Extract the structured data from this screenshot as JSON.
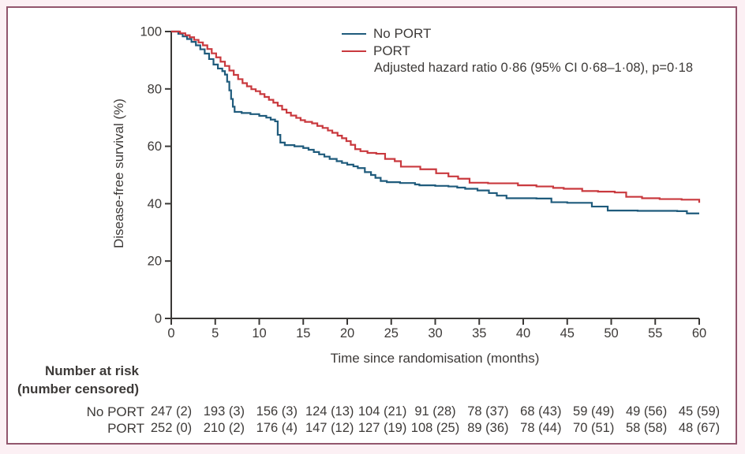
{
  "colors": {
    "no_port": "#1f5b7c",
    "port": "#c9393e",
    "axis": "#3a3836",
    "text": "#3d3a38",
    "frame_border": "#92566d",
    "page_background": "#fcf0f4"
  },
  "chart_data": {
    "type": "line",
    "subtype": "kaplan-meier-step",
    "title": "",
    "xlabel": "Time since randomisation (months)",
    "ylabel": "Disease-free survival (%)",
    "xlim": [
      0,
      60
    ],
    "ylim": [
      0,
      100
    ],
    "xticks": [
      0,
      5,
      10,
      15,
      20,
      25,
      30,
      35,
      40,
      45,
      50,
      55,
      60
    ],
    "yticks": [
      0,
      20,
      40,
      60,
      80,
      100
    ],
    "grid": false,
    "legend_position": "top-right-inside",
    "legend": [
      {
        "name": "No PORT",
        "color": "#1f5b7c"
      },
      {
        "name": "PORT",
        "color": "#c9393e"
      }
    ],
    "annotation": "Adjusted hazard ratio 0·86 (95% CI 0·68–1·08), p=0·18",
    "series": [
      {
        "name": "No PORT",
        "color": "#1f5b7c",
        "points": [
          [
            0,
            100
          ],
          [
            0.8,
            99.2
          ],
          [
            1.3,
            98.3
          ],
          [
            1.8,
            97.4
          ],
          [
            2.3,
            96.4
          ],
          [
            2.8,
            95.2
          ],
          [
            3.3,
            93.8
          ],
          [
            3.8,
            92.3
          ],
          [
            4.3,
            90.4
          ],
          [
            4.8,
            88.5
          ],
          [
            5.3,
            87.1
          ],
          [
            5.8,
            86.2
          ],
          [
            6.1,
            85
          ],
          [
            6.35,
            82.5
          ],
          [
            6.6,
            79.5
          ],
          [
            6.8,
            76.5
          ],
          [
            7,
            73.8
          ],
          [
            7.2,
            72
          ],
          [
            8,
            71.6
          ],
          [
            9,
            71.2
          ],
          [
            10,
            70.6
          ],
          [
            10.8,
            70
          ],
          [
            11.3,
            69.3
          ],
          [
            11.8,
            68.7
          ],
          [
            12.1,
            64
          ],
          [
            12.4,
            61.3
          ],
          [
            12.9,
            60.4
          ],
          [
            14,
            60
          ],
          [
            15,
            59.4
          ],
          [
            15.6,
            58.8
          ],
          [
            16.2,
            58
          ],
          [
            16.8,
            57.2
          ],
          [
            17.4,
            56.4
          ],
          [
            18,
            55.6
          ],
          [
            18.8,
            54.8
          ],
          [
            19.4,
            54.2
          ],
          [
            20,
            53.6
          ],
          [
            20.7,
            53
          ],
          [
            21.2,
            52.4
          ],
          [
            22,
            51
          ],
          [
            22.7,
            50
          ],
          [
            23.2,
            49
          ],
          [
            23.8,
            47.9
          ],
          [
            24.5,
            47.5
          ],
          [
            26,
            47.2
          ],
          [
            27.7,
            46.7
          ],
          [
            28.2,
            46.4
          ],
          [
            30,
            46.2
          ],
          [
            31.5,
            46
          ],
          [
            32.5,
            45.6
          ],
          [
            33.4,
            45.2
          ],
          [
            34.8,
            44.6
          ],
          [
            36.1,
            43.7
          ],
          [
            37,
            42.8
          ],
          [
            38.1,
            41.9
          ],
          [
            41.5,
            41.8
          ],
          [
            43.2,
            40.5
          ],
          [
            45,
            40.3
          ],
          [
            47.8,
            39
          ],
          [
            49.6,
            37.6
          ],
          [
            53,
            37.5
          ],
          [
            57.5,
            37.4
          ],
          [
            58.6,
            36.6
          ],
          [
            60,
            36.6
          ]
        ]
      },
      {
        "name": "PORT",
        "color": "#c9393e",
        "points": [
          [
            0,
            100
          ],
          [
            1,
            99.4
          ],
          [
            1.6,
            98.7
          ],
          [
            2.1,
            98
          ],
          [
            2.6,
            97.1
          ],
          [
            3.1,
            96.2
          ],
          [
            3.6,
            95.2
          ],
          [
            4.1,
            93.9
          ],
          [
            4.6,
            92.4
          ],
          [
            5.1,
            91
          ],
          [
            5.6,
            89.5
          ],
          [
            6.1,
            88
          ],
          [
            6.6,
            86.4
          ],
          [
            7.1,
            84.9
          ],
          [
            7.6,
            83.4
          ],
          [
            8.1,
            82
          ],
          [
            8.6,
            80.9
          ],
          [
            9.1,
            79.9
          ],
          [
            9.6,
            79.2
          ],
          [
            10.1,
            78.2
          ],
          [
            10.6,
            77.2
          ],
          [
            11.1,
            76.2
          ],
          [
            11.6,
            75.2
          ],
          [
            12.1,
            74.1
          ],
          [
            12.6,
            72.8
          ],
          [
            13.1,
            71.7
          ],
          [
            13.6,
            70.7
          ],
          [
            14.2,
            69.9
          ],
          [
            14.7,
            69.1
          ],
          [
            15.2,
            68.5
          ],
          [
            16,
            68
          ],
          [
            16.6,
            67.1
          ],
          [
            17.2,
            66.4
          ],
          [
            17.8,
            65.5
          ],
          [
            18.3,
            64.7
          ],
          [
            18.9,
            63.7
          ],
          [
            19.4,
            62.8
          ],
          [
            19.9,
            61.8
          ],
          [
            20.4,
            60.5
          ],
          [
            20.9,
            59
          ],
          [
            21.5,
            58.3
          ],
          [
            22.3,
            57.7
          ],
          [
            23.3,
            57.4
          ],
          [
            24.3,
            55.6
          ],
          [
            25.4,
            54.8
          ],
          [
            26.1,
            52.9
          ],
          [
            28.3,
            52
          ],
          [
            30.1,
            50.6
          ],
          [
            31.5,
            49.5
          ],
          [
            32.6,
            48.7
          ],
          [
            33.9,
            47.3
          ],
          [
            36,
            47.1
          ],
          [
            39.4,
            46.4
          ],
          [
            41.5,
            46
          ],
          [
            43.4,
            45.5
          ],
          [
            44.6,
            45.2
          ],
          [
            46.7,
            44.4
          ],
          [
            48.5,
            44.2
          ],
          [
            50.4,
            43.9
          ],
          [
            51.7,
            42.4
          ],
          [
            53.5,
            41.9
          ],
          [
            55.5,
            41.6
          ],
          [
            58,
            41.4
          ],
          [
            60,
            40.3
          ]
        ]
      }
    ]
  },
  "at_risk": {
    "header_line1": "Number at risk",
    "header_line2": "(number censored)",
    "time_points": [
      0,
      6,
      12,
      18,
      24,
      30,
      36,
      42,
      48,
      54,
      60
    ],
    "rows": [
      {
        "label": "No PORT",
        "values": [
          "247 (2)",
          "193 (3)",
          "156 (3)",
          "124 (13)",
          "104 (21)",
          "91 (28)",
          "78 (37)",
          "68 (43)",
          "59 (49)",
          "49 (56)",
          "45 (59)"
        ]
      },
      {
        "label": "PORT",
        "values": [
          "252 (0)",
          "210 (2)",
          "176 (4)",
          "147 (12)",
          "127 (19)",
          "108 (25)",
          "89 (36)",
          "78 (44)",
          "70 (51)",
          "58 (58)",
          "48 (67)"
        ]
      }
    ]
  }
}
